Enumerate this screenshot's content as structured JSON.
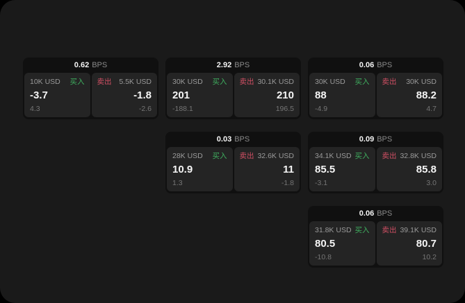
{
  "labels": {
    "buy": "买入",
    "sell": "卖出",
    "bps_unit": "BPS"
  },
  "colors": {
    "page_bg": "#1a1a1a",
    "card_bg": "#101010",
    "panel_bg": "#242424",
    "buy_green": "#3fae5f",
    "sell_red": "#cf4f63"
  },
  "cards": [
    {
      "bps": "0.62",
      "buy": {
        "size": "10K USD",
        "price": "-3.7",
        "sub": "4.3"
      },
      "sell": {
        "size": "5.5K USD",
        "price": "-1.8",
        "sub": "-2.6"
      }
    },
    {
      "bps": "2.92",
      "buy": {
        "size": "30K USD",
        "price": "201",
        "sub": "-188.1"
      },
      "sell": {
        "size": "30.1K USD",
        "price": "210",
        "sub": "196.5"
      }
    },
    {
      "bps": "0.06",
      "buy": {
        "size": "30K USD",
        "price": "88",
        "sub": "-4.9"
      },
      "sell": {
        "size": "30K USD",
        "price": "88.2",
        "sub": "4.7"
      }
    },
    {
      "bps": "0.03",
      "buy": {
        "size": "28K USD",
        "price": "10.9",
        "sub": "1.3"
      },
      "sell": {
        "size": "32.6K USD",
        "price": "11",
        "sub": "-1.8"
      }
    },
    {
      "bps": "0.09",
      "buy": {
        "size": "34.1K USD",
        "price": "85.5",
        "sub": "-3.1"
      },
      "sell": {
        "size": "32.8K USD",
        "price": "85.8",
        "sub": "3.0"
      }
    },
    {
      "bps": "0.06",
      "buy": {
        "size": "31.8K USD",
        "price": "80.5",
        "sub": "-10.8"
      },
      "sell": {
        "size": "39.1K USD",
        "price": "80.7",
        "sub": "10.2"
      }
    }
  ]
}
